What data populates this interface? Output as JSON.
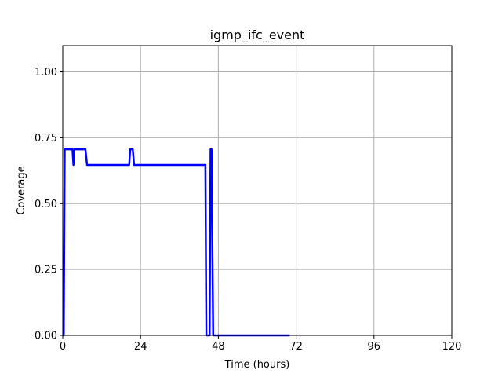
{
  "chart_data": {
    "type": "line",
    "title": "igmp_ifc_event",
    "xlabel": "Time (hours)",
    "ylabel": "Coverage",
    "xlim": [
      0,
      120
    ],
    "ylim": [
      0,
      1.1
    ],
    "xticks": [
      0,
      24,
      48,
      72,
      96,
      120
    ],
    "yticks": [
      0.0,
      0.25,
      0.5,
      0.75,
      1.0
    ],
    "xtick_labels": [
      "0",
      "24",
      "48",
      "72",
      "96",
      "120"
    ],
    "ytick_labels": [
      "0.00",
      "0.25",
      "0.50",
      "0.75",
      "1.00"
    ],
    "grid": true,
    "legend": "none",
    "series": [
      {
        "color": "#0000ff",
        "x": [
          0,
          0.3,
          0.6,
          3.0,
          3.3,
          3.6,
          7.0,
          7.5,
          20.5,
          20.8,
          21.6,
          22.0,
          44.0,
          44.3,
          45.3,
          45.6,
          45.9,
          46.4,
          46.7,
          70.0
        ],
        "y": [
          0.0,
          0.0,
          0.706,
          0.706,
          0.647,
          0.706,
          0.706,
          0.647,
          0.647,
          0.706,
          0.706,
          0.647,
          0.647,
          0.0,
          0.0,
          0.706,
          0.706,
          0.0,
          0.0,
          0.0
        ]
      }
    ]
  }
}
